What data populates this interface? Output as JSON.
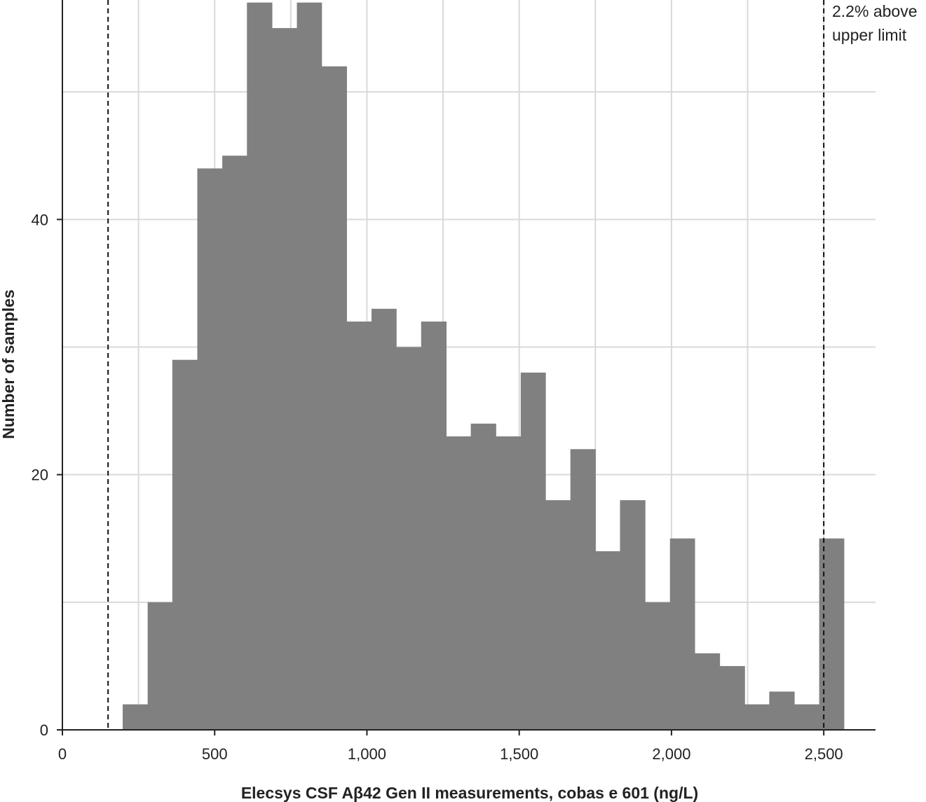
{
  "chart_data": {
    "type": "bar",
    "title": "",
    "xlabel": "Elecsys CSF Aβ42 Gen II measurements, cobas e 601 (ng/L)",
    "ylabel": "Number of samples",
    "xlim": [
      0,
      2670
    ],
    "ylim": [
      0,
      57.2
    ],
    "x_ticks": [
      0,
      500,
      1000,
      1500,
      2000,
      2500
    ],
    "x_tick_labels": [
      "0",
      "500",
      "1,000",
      "1,500",
      "2,000",
      "2,500"
    ],
    "y_ticks": [
      0,
      20,
      40
    ],
    "y_tick_labels": [
      "0",
      "20",
      "40"
    ],
    "grid": true,
    "bin_width": 81.7,
    "bins": [
      {
        "x0": 198,
        "x1": 280,
        "count": 2
      },
      {
        "x0": 280,
        "x1": 361,
        "count": 10
      },
      {
        "x0": 361,
        "x1": 443,
        "count": 29
      },
      {
        "x0": 443,
        "x1": 525,
        "count": 44
      },
      {
        "x0": 525,
        "x1": 606,
        "count": 45
      },
      {
        "x0": 606,
        "x1": 688,
        "count": 57
      },
      {
        "x0": 688,
        "x1": 770,
        "count": 55
      },
      {
        "x0": 770,
        "x1": 851,
        "count": 57
      },
      {
        "x0": 851,
        "x1": 933,
        "count": 52
      },
      {
        "x0": 933,
        "x1": 1015,
        "count": 32
      },
      {
        "x0": 1015,
        "x1": 1096,
        "count": 33
      },
      {
        "x0": 1096,
        "x1": 1178,
        "count": 30
      },
      {
        "x0": 1178,
        "x1": 1260,
        "count": 32
      },
      {
        "x0": 1260,
        "x1": 1341,
        "count": 23
      },
      {
        "x0": 1341,
        "x1": 1423,
        "count": 24
      },
      {
        "x0": 1423,
        "x1": 1505,
        "count": 23
      },
      {
        "x0": 1505,
        "x1": 1586,
        "count": 28
      },
      {
        "x0": 1586,
        "x1": 1668,
        "count": 18
      },
      {
        "x0": 1668,
        "x1": 1750,
        "count": 22
      },
      {
        "x0": 1750,
        "x1": 1831,
        "count": 14
      },
      {
        "x0": 1831,
        "x1": 1913,
        "count": 18
      },
      {
        "x0": 1913,
        "x1": 1995,
        "count": 10
      },
      {
        "x0": 1995,
        "x1": 2076,
        "count": 15
      },
      {
        "x0": 2076,
        "x1": 2158,
        "count": 6
      },
      {
        "x0": 2158,
        "x1": 2240,
        "count": 5
      },
      {
        "x0": 2240,
        "x1": 2321,
        "count": 2
      },
      {
        "x0": 2321,
        "x1": 2403,
        "count": 3
      },
      {
        "x0": 2403,
        "x1": 2485,
        "count": 2
      },
      {
        "x0": 2485,
        "x1": 2566,
        "count": 15
      }
    ],
    "reference_lines": [
      {
        "x": 150,
        "style": "dashed"
      },
      {
        "x": 2500,
        "style": "dashed"
      }
    ],
    "annotations": [
      {
        "lines": [
          "2.2% above",
          "upper limit"
        ],
        "near": "upper-limit-line"
      }
    ],
    "colors": {
      "bar": "#808080",
      "grid": "#d9d9d9",
      "axis": "#222222",
      "reference_line": "#111111"
    }
  }
}
